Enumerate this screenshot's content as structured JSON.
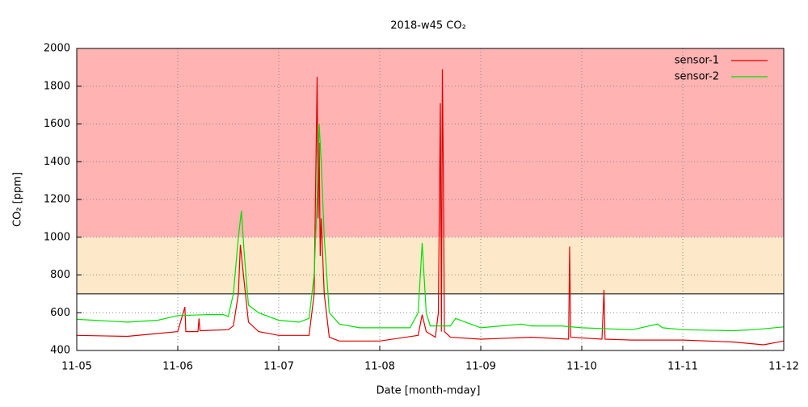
{
  "chart_data": {
    "type": "line",
    "title": "2018-w45 CO₂",
    "x_label": "Date [month-mday]",
    "y_label": "CO₂ [ppm]",
    "xlim": [
      5,
      12
    ],
    "xticks": [
      {
        "value": 5,
        "label": "11-05"
      },
      {
        "value": 6,
        "label": "11-06"
      },
      {
        "value": 7,
        "label": "11-07"
      },
      {
        "value": 8,
        "label": "11-08"
      },
      {
        "value": 9,
        "label": "11-09"
      },
      {
        "value": 10,
        "label": "11-10"
      },
      {
        "value": 11,
        "label": "11-11"
      },
      {
        "value": 12,
        "label": "11-12"
      }
    ],
    "ylim": [
      400,
      2000
    ],
    "yticks": [
      400,
      600,
      800,
      1000,
      1200,
      1400,
      1600,
      1800,
      2000
    ],
    "grid": true,
    "legend": "top-right",
    "bands": [
      {
        "from": 1000,
        "to": 2000,
        "color": "#ffb3b3"
      },
      {
        "from": 700,
        "to": 1000,
        "color": "#fde9c9"
      }
    ],
    "threshold": 700,
    "series": [
      {
        "name": "sensor-1",
        "color": "#e00000",
        "x": [
          5,
          5.5,
          5.8,
          6.0,
          6.07,
          6.08,
          6.2,
          6.21,
          6.22,
          6.5,
          6.55,
          6.6,
          6.62,
          6.65,
          6.7,
          6.8,
          7.0,
          7.3,
          7.35,
          7.38,
          7.39,
          7.4,
          7.41,
          7.42,
          7.45,
          7.5,
          7.6,
          8.0,
          8.38,
          8.42,
          8.46,
          8.55,
          8.58,
          8.6,
          8.61,
          8.62,
          8.63,
          8.64,
          8.7,
          9.0,
          9.5,
          9.87,
          9.88,
          9.89,
          10.2,
          10.22,
          10.23,
          10.5,
          11,
          11.5,
          11.8,
          12
        ],
        "values": [
          480,
          475,
          490,
          500,
          630,
          500,
          500,
          570,
          505,
          510,
          530,
          700,
          960,
          800,
          550,
          500,
          480,
          480,
          700,
          1850,
          1100,
          1500,
          900,
          1100,
          700,
          470,
          450,
          450,
          480,
          590,
          500,
          470,
          600,
          1710,
          500,
          1890,
          1280,
          500,
          470,
          460,
          470,
          460,
          950,
          470,
          460,
          720,
          460,
          455,
          455,
          445,
          430,
          450
        ]
      },
      {
        "name": "sensor-2",
        "color": "#00e000",
        "x": [
          5,
          5.5,
          5.8,
          6.0,
          6.3,
          6.45,
          6.5,
          6.55,
          6.6,
          6.63,
          6.66,
          6.7,
          6.75,
          6.8,
          7.0,
          7.2,
          7.3,
          7.35,
          7.38,
          7.4,
          7.42,
          7.45,
          7.5,
          7.6,
          7.8,
          8.0,
          8.3,
          8.38,
          8.42,
          8.46,
          8.5,
          8.7,
          8.75,
          8.9,
          9.0,
          9.4,
          9.5,
          9.8,
          10.0,
          10.5,
          10.75,
          10.8,
          11.0,
          11.5,
          11.7,
          12
        ],
        "values": [
          565,
          550,
          560,
          585,
          590,
          590,
          580,
          700,
          1000,
          1140,
          900,
          640,
          620,
          600,
          560,
          550,
          570,
          800,
          1200,
          1600,
          1400,
          1000,
          600,
          540,
          520,
          520,
          520,
          600,
          970,
          600,
          530,
          530,
          570,
          540,
          520,
          540,
          530,
          530,
          520,
          510,
          540,
          520,
          510,
          505,
          510,
          525
        ]
      }
    ]
  }
}
